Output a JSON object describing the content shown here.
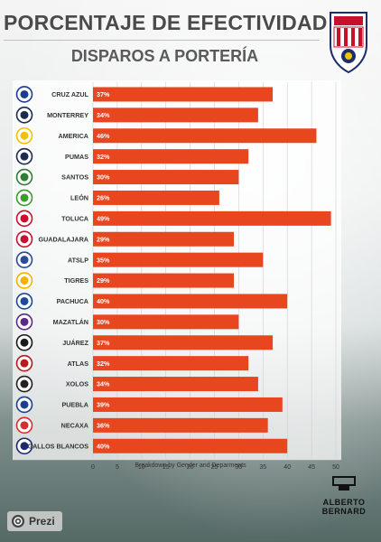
{
  "header": {
    "title": "PORCENTAJE DE EFECTIVIDAD",
    "subtitle": "DISPAROS A PORTERÍA"
  },
  "footer": {
    "note": "Breakdown by Gender and Deparments",
    "prezi_label": "Prezi",
    "brand_line1": "ALBERTO",
    "brand_line2": "BERNARD"
  },
  "colors": {
    "bar": "#e8461e",
    "crest_red": "#c8102e",
    "crest_blue": "#1c2f6b"
  },
  "chart_data": {
    "type": "bar",
    "orientation": "horizontal",
    "categories": [
      "CRUZ AZUL",
      "MONTERREY",
      "AMERICA",
      "PUMAS",
      "SANTOS",
      "LEÓN",
      "TOLUCA",
      "GUADALAJARA",
      "ATSLP",
      "TIGRES",
      "PACHUCA",
      "MAZATLÁN",
      "JUÁREZ",
      "ATLAS",
      "XOLOS",
      "PUEBLA",
      "NECAXA",
      "GALLOS BLANCOS"
    ],
    "values": [
      37,
      34,
      46,
      32,
      30,
      26,
      49,
      29,
      35,
      29,
      40,
      30,
      37,
      32,
      34,
      39,
      36,
      40
    ],
    "value_labels": [
      "37%",
      "34%",
      "46%",
      "32%",
      "30%",
      "26%",
      "49%",
      "29%",
      "35%",
      "29%",
      "40%",
      "30%",
      "37%",
      "32%",
      "34%",
      "39%",
      "36%",
      "40%"
    ],
    "xlim": [
      0,
      50
    ],
    "xticks": [
      "0",
      "5",
      "10",
      "15",
      "20",
      "25",
      "30",
      "35",
      "40",
      "45",
      "50"
    ],
    "logo_colors": [
      "#1b3f8f",
      "#1a2a4f",
      "#f2c200",
      "#1e2a4f",
      "#2e7d32",
      "#3c9a2f",
      "#c8102e",
      "#c8102e",
      "#2a4a9a",
      "#f2b400",
      "#1a4a9a",
      "#5b2a86",
      "#1a1a1a",
      "#b71c1c",
      "#222222",
      "#1a3f8f",
      "#d32f2f",
      "#1a2a6f"
    ],
    "logo_icons": [
      "cruz-azul-logo-icon",
      "monterrey-logo-icon",
      "america-logo-icon",
      "pumas-logo-icon",
      "santos-logo-icon",
      "leon-logo-icon",
      "toluca-logo-icon",
      "guadalajara-logo-icon",
      "atslp-logo-icon",
      "tigres-logo-icon",
      "pachuca-logo-icon",
      "mazatlan-logo-icon",
      "juarez-logo-icon",
      "atlas-logo-icon",
      "xolos-logo-icon",
      "puebla-logo-icon",
      "necaxa-logo-icon",
      "gallos-blancos-logo-icon"
    ]
  }
}
